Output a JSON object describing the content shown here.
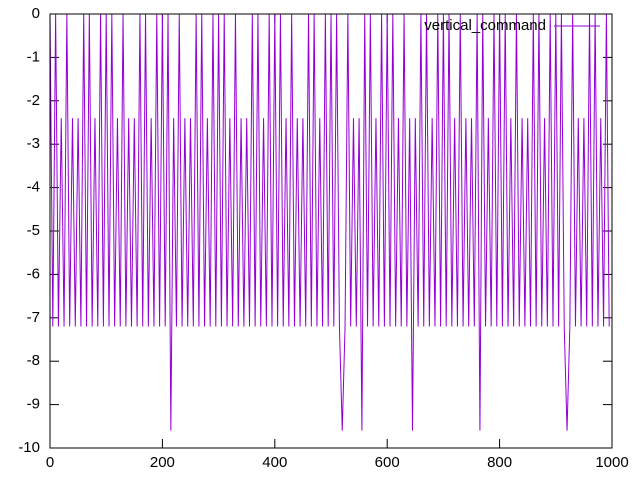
{
  "chart_data": {
    "type": "line",
    "x": [
      0,
      5,
      10,
      15,
      20,
      25,
      30,
      35,
      40,
      45,
      50,
      55,
      60,
      65,
      70,
      75,
      80,
      85,
      90,
      95,
      100,
      105,
      110,
      115,
      120,
      125,
      130,
      135,
      140,
      145,
      150,
      155,
      160,
      165,
      170,
      175,
      180,
      185,
      190,
      195,
      200,
      205,
      210,
      215,
      220,
      225,
      230,
      235,
      240,
      245,
      250,
      255,
      260,
      265,
      270,
      275,
      280,
      285,
      290,
      295,
      300,
      305,
      310,
      315,
      320,
      325,
      330,
      335,
      340,
      345,
      350,
      355,
      360,
      365,
      370,
      375,
      380,
      385,
      390,
      395,
      400,
      405,
      410,
      415,
      420,
      425,
      430,
      435,
      440,
      445,
      450,
      455,
      460,
      465,
      470,
      475,
      480,
      485,
      490,
      495,
      500,
      505,
      510,
      515,
      520,
      525,
      530,
      535,
      540,
      545,
      550,
      555,
      560,
      565,
      570,
      575,
      580,
      585,
      590,
      595,
      600,
      605,
      610,
      615,
      620,
      625,
      630,
      635,
      640,
      645,
      650,
      655,
      660,
      665,
      670,
      675,
      680,
      685,
      690,
      695,
      700,
      705,
      710,
      715,
      720,
      725,
      730,
      735,
      740,
      745,
      750,
      755,
      760,
      765,
      770,
      775,
      780,
      785,
      790,
      795,
      800,
      805,
      810,
      815,
      820,
      825,
      830,
      835,
      840,
      845,
      850,
      855,
      860,
      865,
      870,
      875,
      880,
      885,
      890,
      895,
      900,
      905,
      910,
      915,
      920,
      925,
      930,
      935,
      940,
      945,
      950,
      955,
      960,
      965,
      970,
      975,
      980,
      985,
      990,
      995
    ],
    "series": [
      {
        "name": "vertical_command",
        "color": "#9400d3",
        "values": [
          0,
          -7.2,
          0,
          -7.2,
          -2.4,
          -7.2,
          0,
          -7.2,
          -2.4,
          -7.2,
          -2.4,
          -7.2,
          0,
          -7.2,
          0,
          -7.2,
          -2.4,
          -7.2,
          0,
          -7.2,
          0,
          -7.2,
          0,
          -7.2,
          -2.4,
          -7.2,
          0,
          -7.2,
          -2.4,
          -7.2,
          -2.4,
          -7.2,
          0,
          -7.2,
          0,
          -7.2,
          -2.4,
          -7.2,
          0,
          -7.2,
          0,
          -7.2,
          0,
          -9.6,
          -2.4,
          -7.2,
          0,
          -7.2,
          -2.4,
          -7.2,
          -2.4,
          -7.2,
          0,
          -7.2,
          0,
          -7.2,
          -2.4,
          -7.2,
          0,
          -7.2,
          0,
          -7.2,
          0,
          -7.2,
          -2.4,
          -7.2,
          0,
          -7.2,
          -2.4,
          -7.2,
          -2.4,
          -7.2,
          0,
          -7.2,
          0,
          -7.2,
          -2.4,
          -7.2,
          0,
          -7.2,
          0,
          -7.2,
          0,
          -7.2,
          -2.4,
          -7.2,
          0,
          -7.2,
          -2.4,
          -7.2,
          -2.4,
          -7.2,
          0,
          -7.2,
          0,
          -7.2,
          -2.4,
          -7.2,
          0,
          -7.2,
          0,
          -7.2,
          0,
          -7.2,
          -9.6,
          -7.2,
          0,
          -7.2,
          -2.4,
          -7.2,
          -2.4,
          -9.6,
          0,
          -7.2,
          0,
          -7.2,
          -2.4,
          -7.2,
          0,
          -7.2,
          0,
          -7.2,
          0,
          -7.2,
          -2.4,
          -7.2,
          0,
          -7.2,
          -2.4,
          -9.6,
          -2.4,
          -7.2,
          0,
          -7.2,
          0,
          -7.2,
          -2.4,
          -7.2,
          0,
          -7.2,
          0,
          -7.2,
          0,
          -7.2,
          -2.4,
          -7.2,
          0,
          -7.2,
          -2.4,
          -7.2,
          -2.4,
          -7.2,
          0,
          -9.6,
          0,
          -7.2,
          -2.4,
          -7.2,
          0,
          -7.2,
          0,
          -7.2,
          0,
          -7.2,
          -2.4,
          -7.2,
          0,
          -7.2,
          -2.4,
          -7.2,
          -2.4,
          -7.2,
          0,
          -7.2,
          0,
          -7.2,
          -2.4,
          -7.2,
          0,
          -7.2,
          0,
          -7.2,
          0,
          -7.2,
          -9.6,
          -7.2,
          0,
          -7.2,
          -2.4,
          -7.2,
          -2.4,
          -7.2,
          0,
          -7.2,
          0,
          -7.2,
          -2.4,
          -7.2,
          0,
          -7.2
        ]
      }
    ],
    "xlim": [
      0,
      1000
    ],
    "xticks": [
      0,
      200,
      400,
      600,
      800,
      1000
    ],
    "ylim": [
      -10,
      0
    ],
    "yticks": [
      0,
      -1,
      -2,
      -3,
      -4,
      -5,
      -6,
      -7,
      -8,
      -9,
      -10
    ],
    "legend": "top-right"
  }
}
